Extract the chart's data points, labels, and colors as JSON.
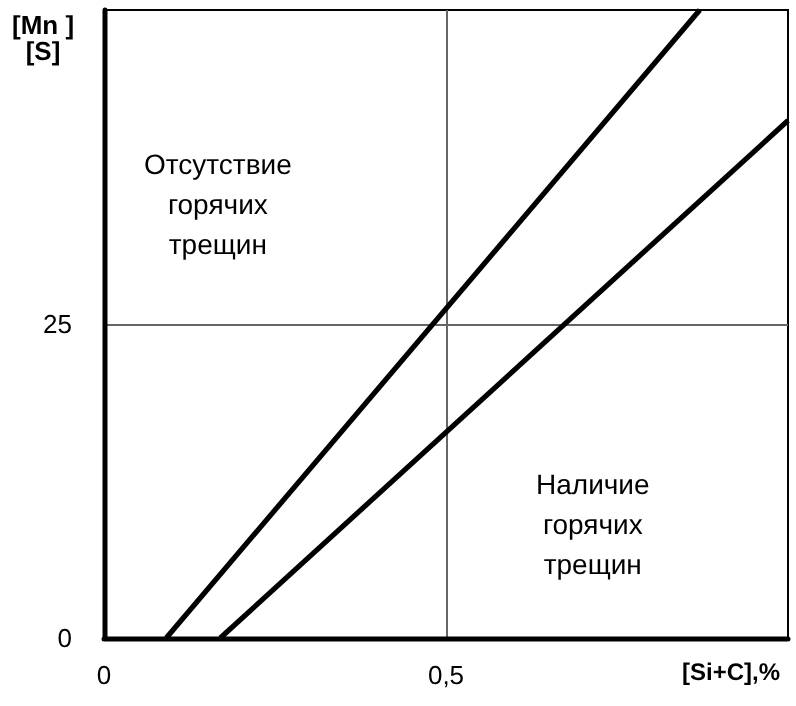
{
  "chart_data": {
    "type": "line",
    "xlabel": "[Si+C],%",
    "ylabel": "[Mn ]\n[S]",
    "annotations": [
      "Отсутствие\nгорячих\nтрещин",
      "Наличие\nгорячих\nтрещин"
    ],
    "series": [
      {
        "color": "#000000",
        "x": [
          0.091,
          0.871
        ],
        "values": [
          0,
          50
        ]
      },
      {
        "color": "#000000",
        "x": [
          0.17,
          1.0
        ],
        "values": [
          0,
          41.2
        ]
      }
    ],
    "xlim": [
      0,
      1
    ],
    "ylim": [
      0,
      50
    ],
    "xticks": [
      0,
      {
        "value": 0.5,
        "label": "0,5"
      }
    ],
    "yticks": [
      0,
      25
    ],
    "grid": true,
    "marker": "none",
    "line_style": "solid"
  }
}
